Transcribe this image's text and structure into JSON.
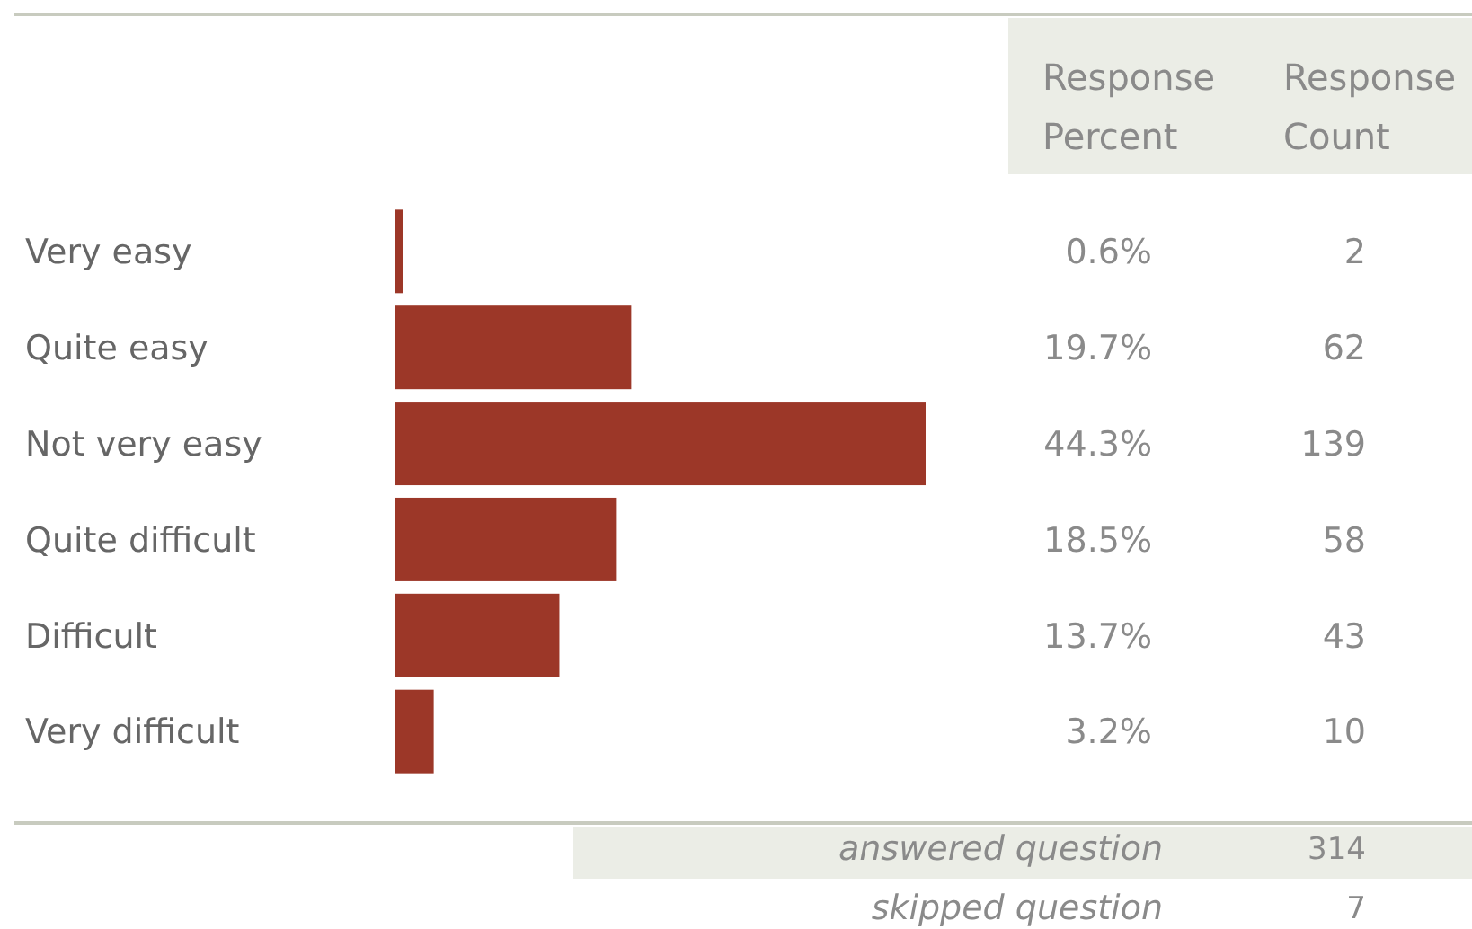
{
  "chart_data": {
    "type": "bar",
    "orientation": "horizontal",
    "categories": [
      "Very easy",
      "Quite easy",
      "Not very easy",
      "Quite difficult",
      "Difficult",
      "Very difficult"
    ],
    "values": [
      0.6,
      19.7,
      44.3,
      18.5,
      13.7,
      3.2
    ],
    "color": "#9c3728",
    "value_labels": [
      "0.6%",
      "19.7%",
      "44.3%",
      "18.5%",
      "13.7%",
      "3.2%"
    ],
    "tick_labels": "y",
    "annotations": [
      "Response Percent",
      "Response Count",
      "2",
      "62",
      "139",
      "58",
      "43",
      "10",
      "answered question",
      "314",
      "skipped question",
      "7"
    ]
  }
}
